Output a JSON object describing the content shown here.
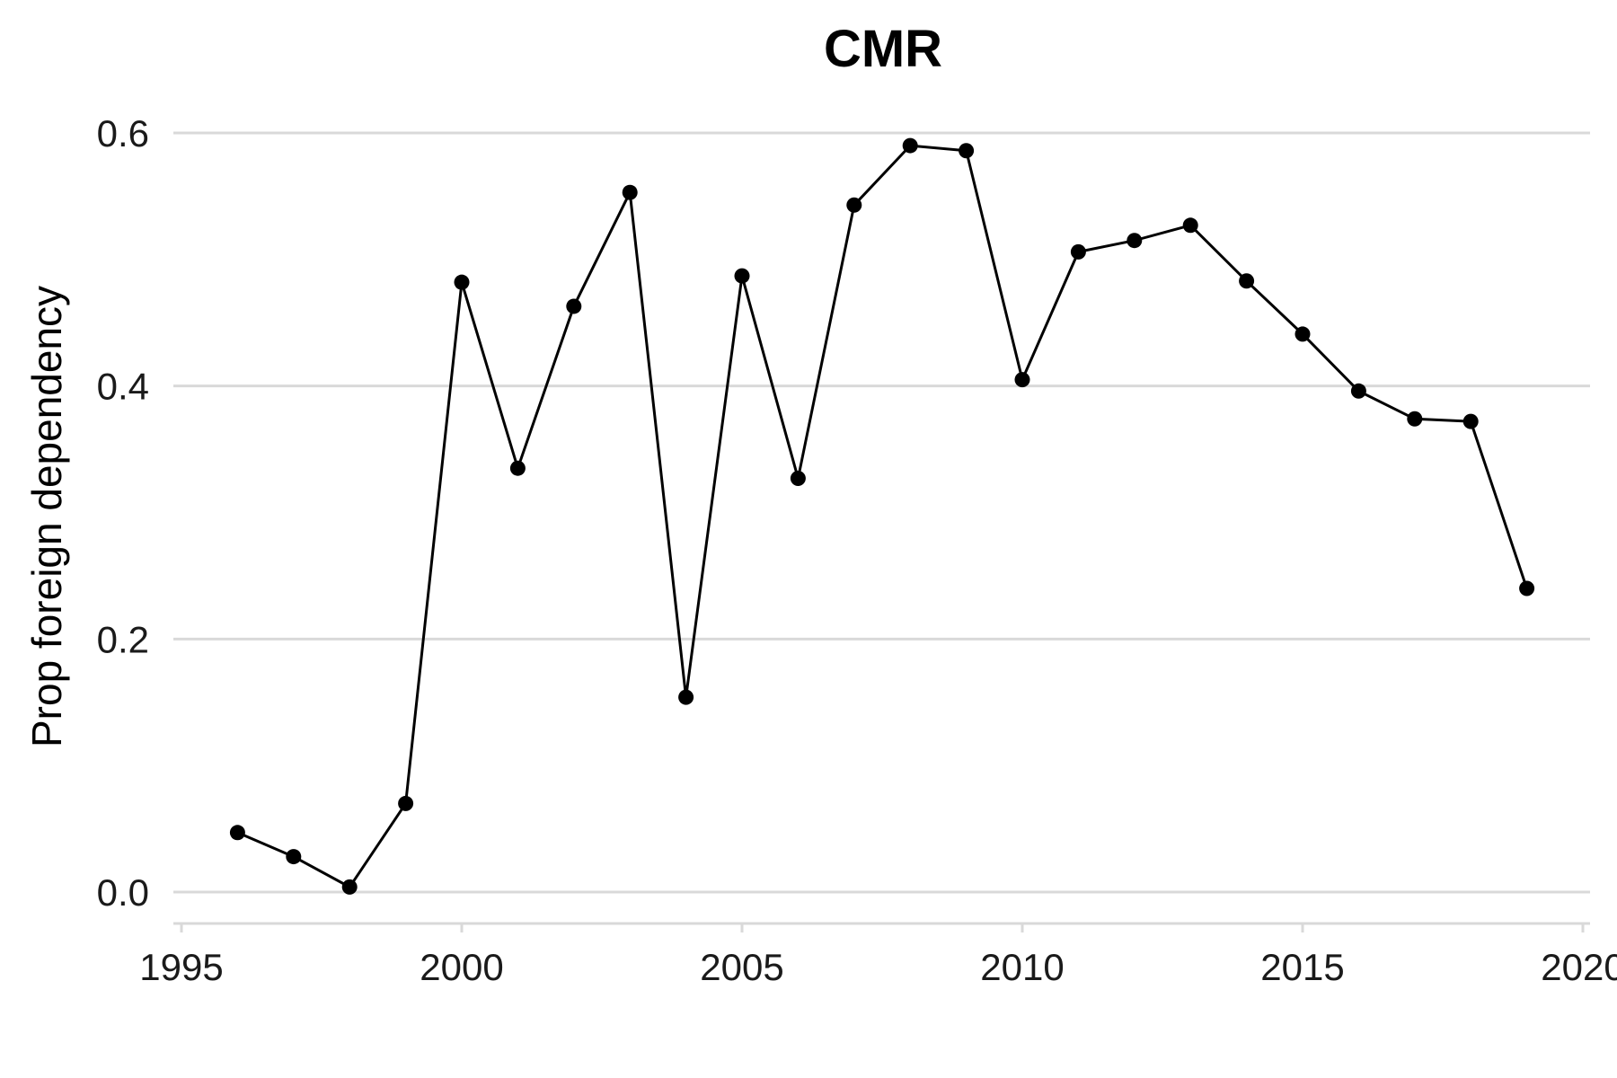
{
  "chart_data": {
    "type": "line",
    "title": "CMR",
    "xlabel": "",
    "ylabel": "Prop foreign dependency",
    "xlim": [
      1995,
      2020
    ],
    "ylim": [
      0,
      0.6
    ],
    "xticks": [
      1995,
      2000,
      2005,
      2010,
      2015,
      2020
    ],
    "xtick_labels": [
      "1995",
      "2000",
      "2005",
      "2010",
      "2015",
      "2020"
    ],
    "yticks": [
      0,
      0.2,
      0.4,
      0.6
    ],
    "ytick_labels": [
      "0.0",
      "0.2",
      "0.4",
      "0.6"
    ],
    "grid": "horizontal",
    "legend": "none",
    "series_color": "#000000",
    "series": [
      {
        "x": [
          1996,
          1997,
          1998,
          1999,
          2000,
          2001,
          2002,
          2003,
          2004,
          2005,
          2006,
          2007,
          2008,
          2009,
          2010,
          2011,
          2012,
          2013,
          2014,
          2015,
          2016,
          2017,
          2018,
          2019
        ],
        "values": [
          0.047,
          0.028,
          0.004,
          0.07,
          0.482,
          0.335,
          0.463,
          0.553,
          0.154,
          0.487,
          0.327,
          0.543,
          0.59,
          0.586,
          0.405,
          0.506,
          0.515,
          0.527,
          0.483,
          0.441,
          0.396,
          0.374,
          0.372,
          0.24
        ]
      }
    ]
  }
}
